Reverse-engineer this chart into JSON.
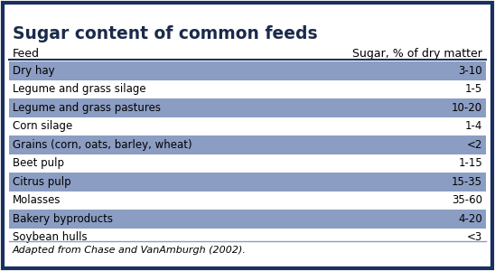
{
  "title": "Sugar content of common feeds",
  "col_header_feed": "Feed",
  "col_header_sugar": "Sugar, % of dry matter",
  "rows": [
    {
      "feed": "Dry hay",
      "sugar": "3-10",
      "shaded": true
    },
    {
      "feed": "Legume and grass silage",
      "sugar": "1-5",
      "shaded": false
    },
    {
      "feed": "Legume and grass pastures",
      "sugar": "10-20",
      "shaded": true
    },
    {
      "feed": "Corn silage",
      "sugar": "1-4",
      "shaded": false
    },
    {
      "feed": "Grains (corn, oats, barley, wheat)",
      "sugar": "<2",
      "shaded": true
    },
    {
      "feed": "Beet pulp",
      "sugar": "1-15",
      "shaded": false
    },
    {
      "feed": "Citrus pulp",
      "sugar": "15-35",
      "shaded": true
    },
    {
      "feed": "Molasses",
      "sugar": "35-60",
      "shaded": false
    },
    {
      "feed": "Bakery byproducts",
      "sugar": "4-20",
      "shaded": true
    },
    {
      "feed": "Soybean hulls",
      "sugar": "<3",
      "shaded": false
    }
  ],
  "footer": "Adapted from Chase and VanAmburgh (2002).",
  "border_color": "#1a3060",
  "shaded_color": "#8b9dc3",
  "bg_color": "#ffffff",
  "title_color": "#1a2a4a",
  "footer_line_color": "#8b9dc3",
  "header_line_color": "#1a3060",
  "title_fontsize": 13.5,
  "header_fontsize": 9,
  "row_fontsize": 8.5,
  "footer_fontsize": 8
}
